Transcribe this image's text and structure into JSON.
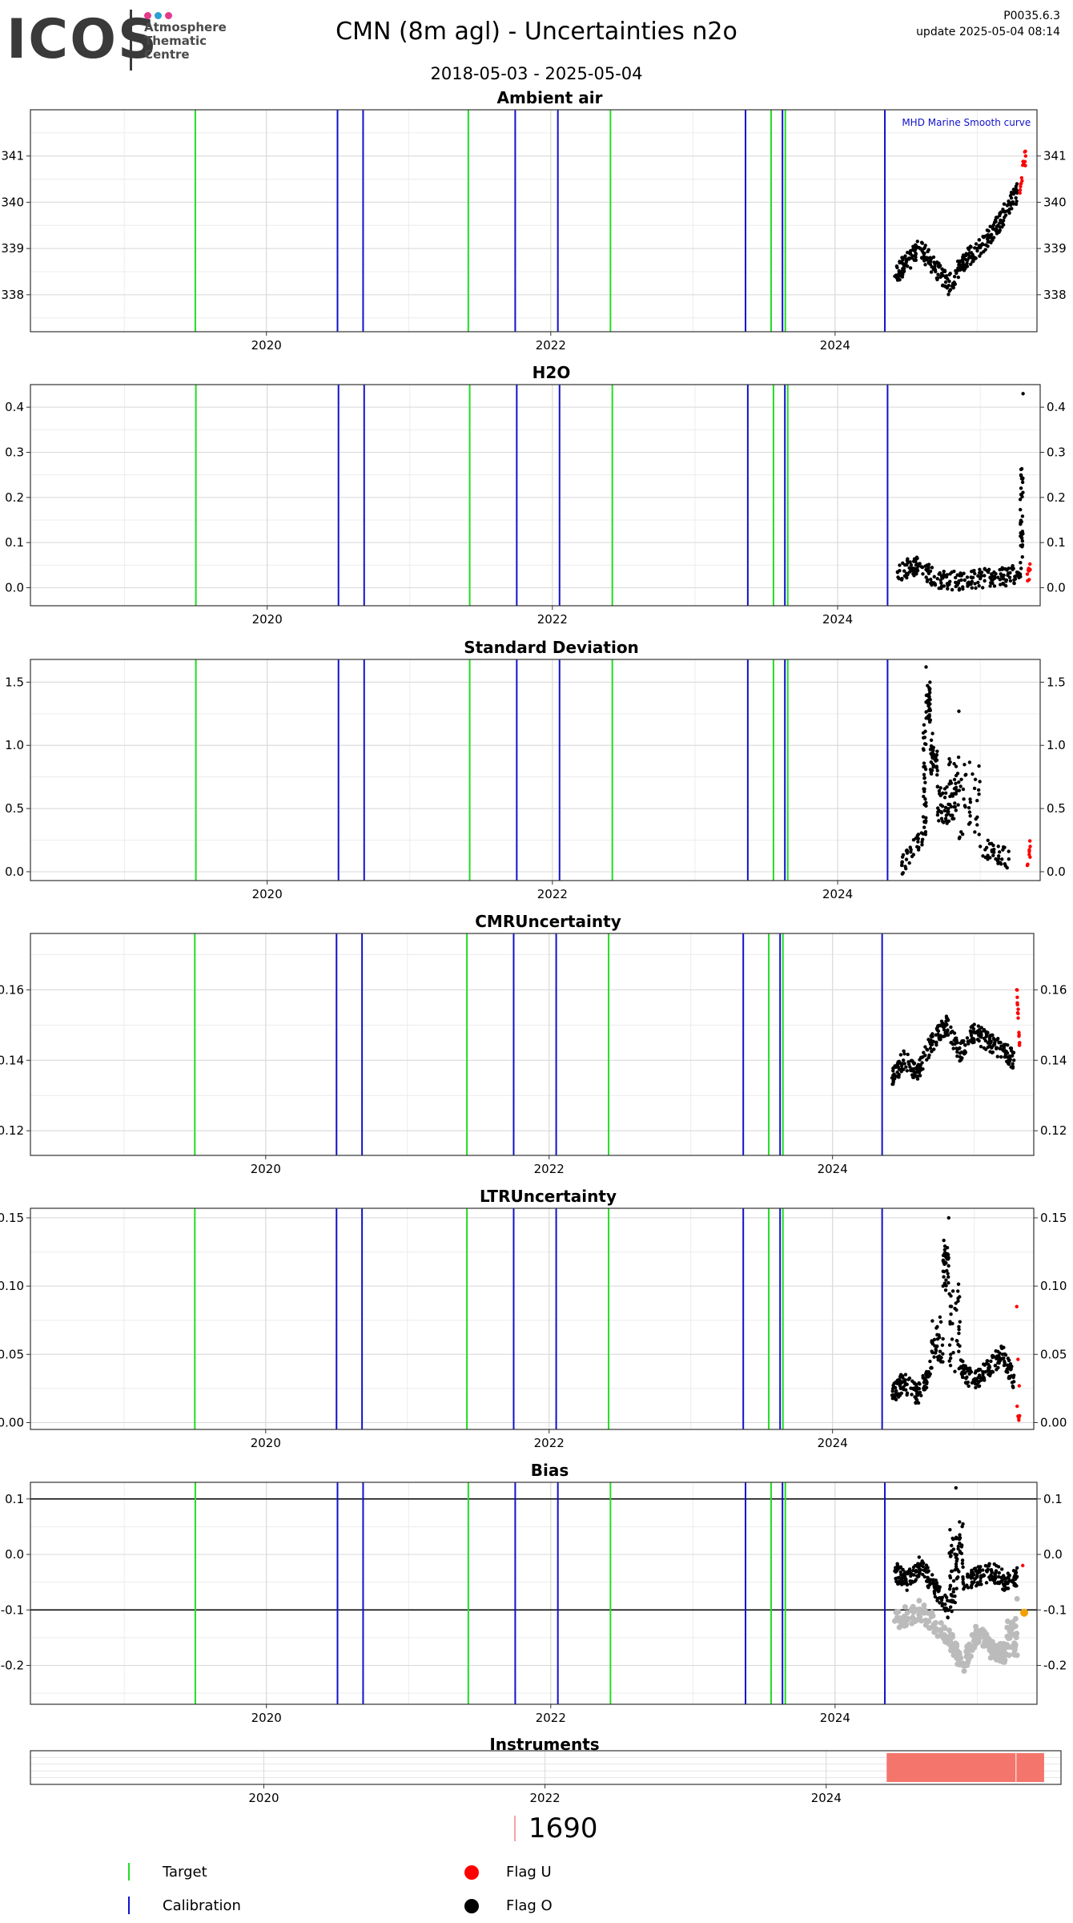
{
  "header": {
    "logo_text": "ICOS",
    "logo_sub": [
      "Atmosphere",
      "Thematic",
      "Centre"
    ],
    "logo_dots": [
      "#e43a8c",
      "#2a9fd6",
      "#e43a8c"
    ],
    "title": "CMN  (8m agl) - Uncertainties n2o",
    "date_range": "2018-05-03 - 2025-05-04",
    "version": "P0035.6.3",
    "update": "update  2025-05-04 08:14"
  },
  "colors": {
    "target": "#22dd22",
    "calibration": "#1111cc",
    "flag_u": "#ff0000",
    "flag_o": "#000000",
    "grid": "#d9d9d9",
    "instrument": "#f4756c",
    "smooth": "#bbbbbb",
    "orange": "#f0a000"
  },
  "x_axis": {
    "min": 2018.34,
    "max": 2025.42,
    "ticks": [
      "2020",
      "2022",
      "2024"
    ],
    "tick_values": [
      2020,
      2022,
      2024
    ]
  },
  "events": {
    "target": [
      2019.5,
      2021.42,
      2022.42,
      2023.55,
      2023.65
    ],
    "calibration": [
      2020.5,
      2020.68,
      2021.75,
      2022.05,
      2023.37,
      2023.63,
      2024.35
    ]
  },
  "chart_data": [
    {
      "type": "scatter",
      "title": "Ambient air",
      "ylim": [
        337.2,
        342.0
      ],
      "yticks": [
        "338",
        "339",
        "340",
        "341"
      ],
      "ytick_values": [
        338,
        339,
        340,
        341
      ],
      "annotation": "MHD Marine Smooth curve",
      "series": [
        {
          "name": "Flag O",
          "x": [
            2024.42,
            2024.5,
            2024.6,
            2024.7,
            2024.8,
            2024.9,
            2025.0,
            2025.1,
            2025.2,
            2025.28
          ],
          "y": [
            338.4,
            338.7,
            339.0,
            338.6,
            338.2,
            338.7,
            339.0,
            339.3,
            339.8,
            340.2
          ]
        },
        {
          "name": "Flag U",
          "x": [
            2025.3,
            2025.32,
            2025.34
          ],
          "y": [
            340.2,
            340.8,
            341.0
          ]
        }
      ]
    },
    {
      "type": "scatter",
      "title": "H2O",
      "ylim": [
        -0.04,
        0.45
      ],
      "yticks": [
        "0.0",
        "0.1",
        "0.2",
        "0.3",
        "0.4"
      ],
      "ytick_values": [
        0.0,
        0.1,
        0.2,
        0.3,
        0.4
      ],
      "series": [
        {
          "name": "Flag O",
          "x": [
            2024.42,
            2024.55,
            2024.7,
            2024.85,
            2025.0,
            2025.15,
            2025.28,
            2025.3
          ],
          "y": [
            0.035,
            0.05,
            0.02,
            0.015,
            0.02,
            0.025,
            0.03,
            0.43
          ]
        },
        {
          "name": "Flag U",
          "x": [
            2025.33,
            2025.35
          ],
          "y": [
            0.03,
            0.04
          ]
        }
      ]
    },
    {
      "type": "scatter",
      "title": "Standard Deviation",
      "ylim": [
        -0.07,
        1.68
      ],
      "yticks": [
        "0.0",
        "0.5",
        "1.0",
        "1.5"
      ],
      "ytick_values": [
        0.0,
        0.5,
        1.0,
        1.5
      ],
      "series": [
        {
          "name": "Flag O",
          "x": [
            2024.45,
            2024.6,
            2024.62,
            2024.65,
            2024.7,
            2024.78,
            2024.85,
            2025.0,
            2025.2
          ],
          "y": [
            0.05,
            0.3,
            1.62,
            1.2,
            0.8,
            0.4,
            1.27,
            0.2,
            0.1
          ]
        },
        {
          "name": "Flag U",
          "x": [
            2025.33,
            2025.35
          ],
          "y": [
            0.05,
            0.2
          ]
        }
      ]
    },
    {
      "type": "scatter",
      "title": "CMRUncertainty",
      "ylim": [
        0.113,
        0.176
      ],
      "yticks": [
        "0.12",
        "0.14",
        "0.16"
      ],
      "ytick_values": [
        0.12,
        0.14,
        0.16
      ],
      "series": [
        {
          "name": "Flag O",
          "x": [
            2024.42,
            2024.5,
            2024.6,
            2024.7,
            2024.8,
            2024.9,
            2025.0,
            2025.1,
            2025.2,
            2025.28
          ],
          "y": [
            0.135,
            0.14,
            0.137,
            0.145,
            0.15,
            0.142,
            0.148,
            0.145,
            0.143,
            0.14
          ]
        },
        {
          "name": "Flag U",
          "x": [
            2025.3,
            2025.31,
            2025.32
          ],
          "y": [
            0.16,
            0.152,
            0.145
          ]
        }
      ]
    },
    {
      "type": "scatter",
      "title": "LTRUncertainty",
      "ylim": [
        -0.005,
        0.157
      ],
      "yticks": [
        "0.00",
        "0.05",
        "0.10",
        "0.15"
      ],
      "ytick_values": [
        0.0,
        0.05,
        0.1,
        0.15
      ],
      "series": [
        {
          "name": "Flag O",
          "x": [
            2024.42,
            2024.5,
            2024.6,
            2024.7,
            2024.78,
            2024.82,
            2024.9,
            2025.0,
            2025.1,
            2025.2,
            2025.28
          ],
          "y": [
            0.02,
            0.03,
            0.02,
            0.04,
            0.1,
            0.15,
            0.04,
            0.03,
            0.04,
            0.05,
            0.03
          ]
        },
        {
          "name": "Flag U",
          "x": [
            2025.3,
            2025.32
          ],
          "y": [
            0.085,
            0.005
          ]
        }
      ]
    },
    {
      "type": "scatter",
      "title": "Bias",
      "ylim": [
        -0.27,
        0.13
      ],
      "yticks": [
        "-0.2",
        "-0.1",
        "0.0",
        "0.1"
      ],
      "ytick_values": [
        -0.2,
        -0.1,
        0.0,
        0.1
      ],
      "reference_lines": [
        0.1,
        -0.1
      ],
      "series": [
        {
          "name": "Flag O",
          "x": [
            2024.42,
            2024.5,
            2024.6,
            2024.7,
            2024.8,
            2024.85,
            2024.9,
            2025.0,
            2025.1,
            2025.2,
            2025.28
          ],
          "y": [
            -0.03,
            -0.05,
            -0.02,
            -0.06,
            -0.1,
            0.12,
            -0.05,
            -0.04,
            -0.03,
            -0.05,
            -0.04
          ]
        },
        {
          "name": "Smooth",
          "x": [
            2024.42,
            2024.6,
            2024.8,
            2024.9,
            2025.0,
            2025.1,
            2025.2,
            2025.28
          ],
          "y": [
            -0.12,
            -0.1,
            -0.15,
            -0.2,
            -0.14,
            -0.17,
            -0.18,
            -0.08
          ]
        },
        {
          "name": "Flag U",
          "x": [
            2025.32
          ],
          "y": [
            -0.02
          ]
        }
      ],
      "orange_points": {
        "x": [
          2025.33
        ],
        "y": [
          -0.105
        ]
      }
    }
  ],
  "instruments": {
    "title": "Instruments",
    "xlim": [
      2018.34,
      2025.67
    ],
    "bars": [
      {
        "from": 2024.43,
        "to": 2025.55
      }
    ],
    "count": "1690"
  },
  "legend": {
    "target": "Target",
    "calibration": "Calibration",
    "flag_u": "Flag U",
    "flag_o": "Flag O"
  }
}
